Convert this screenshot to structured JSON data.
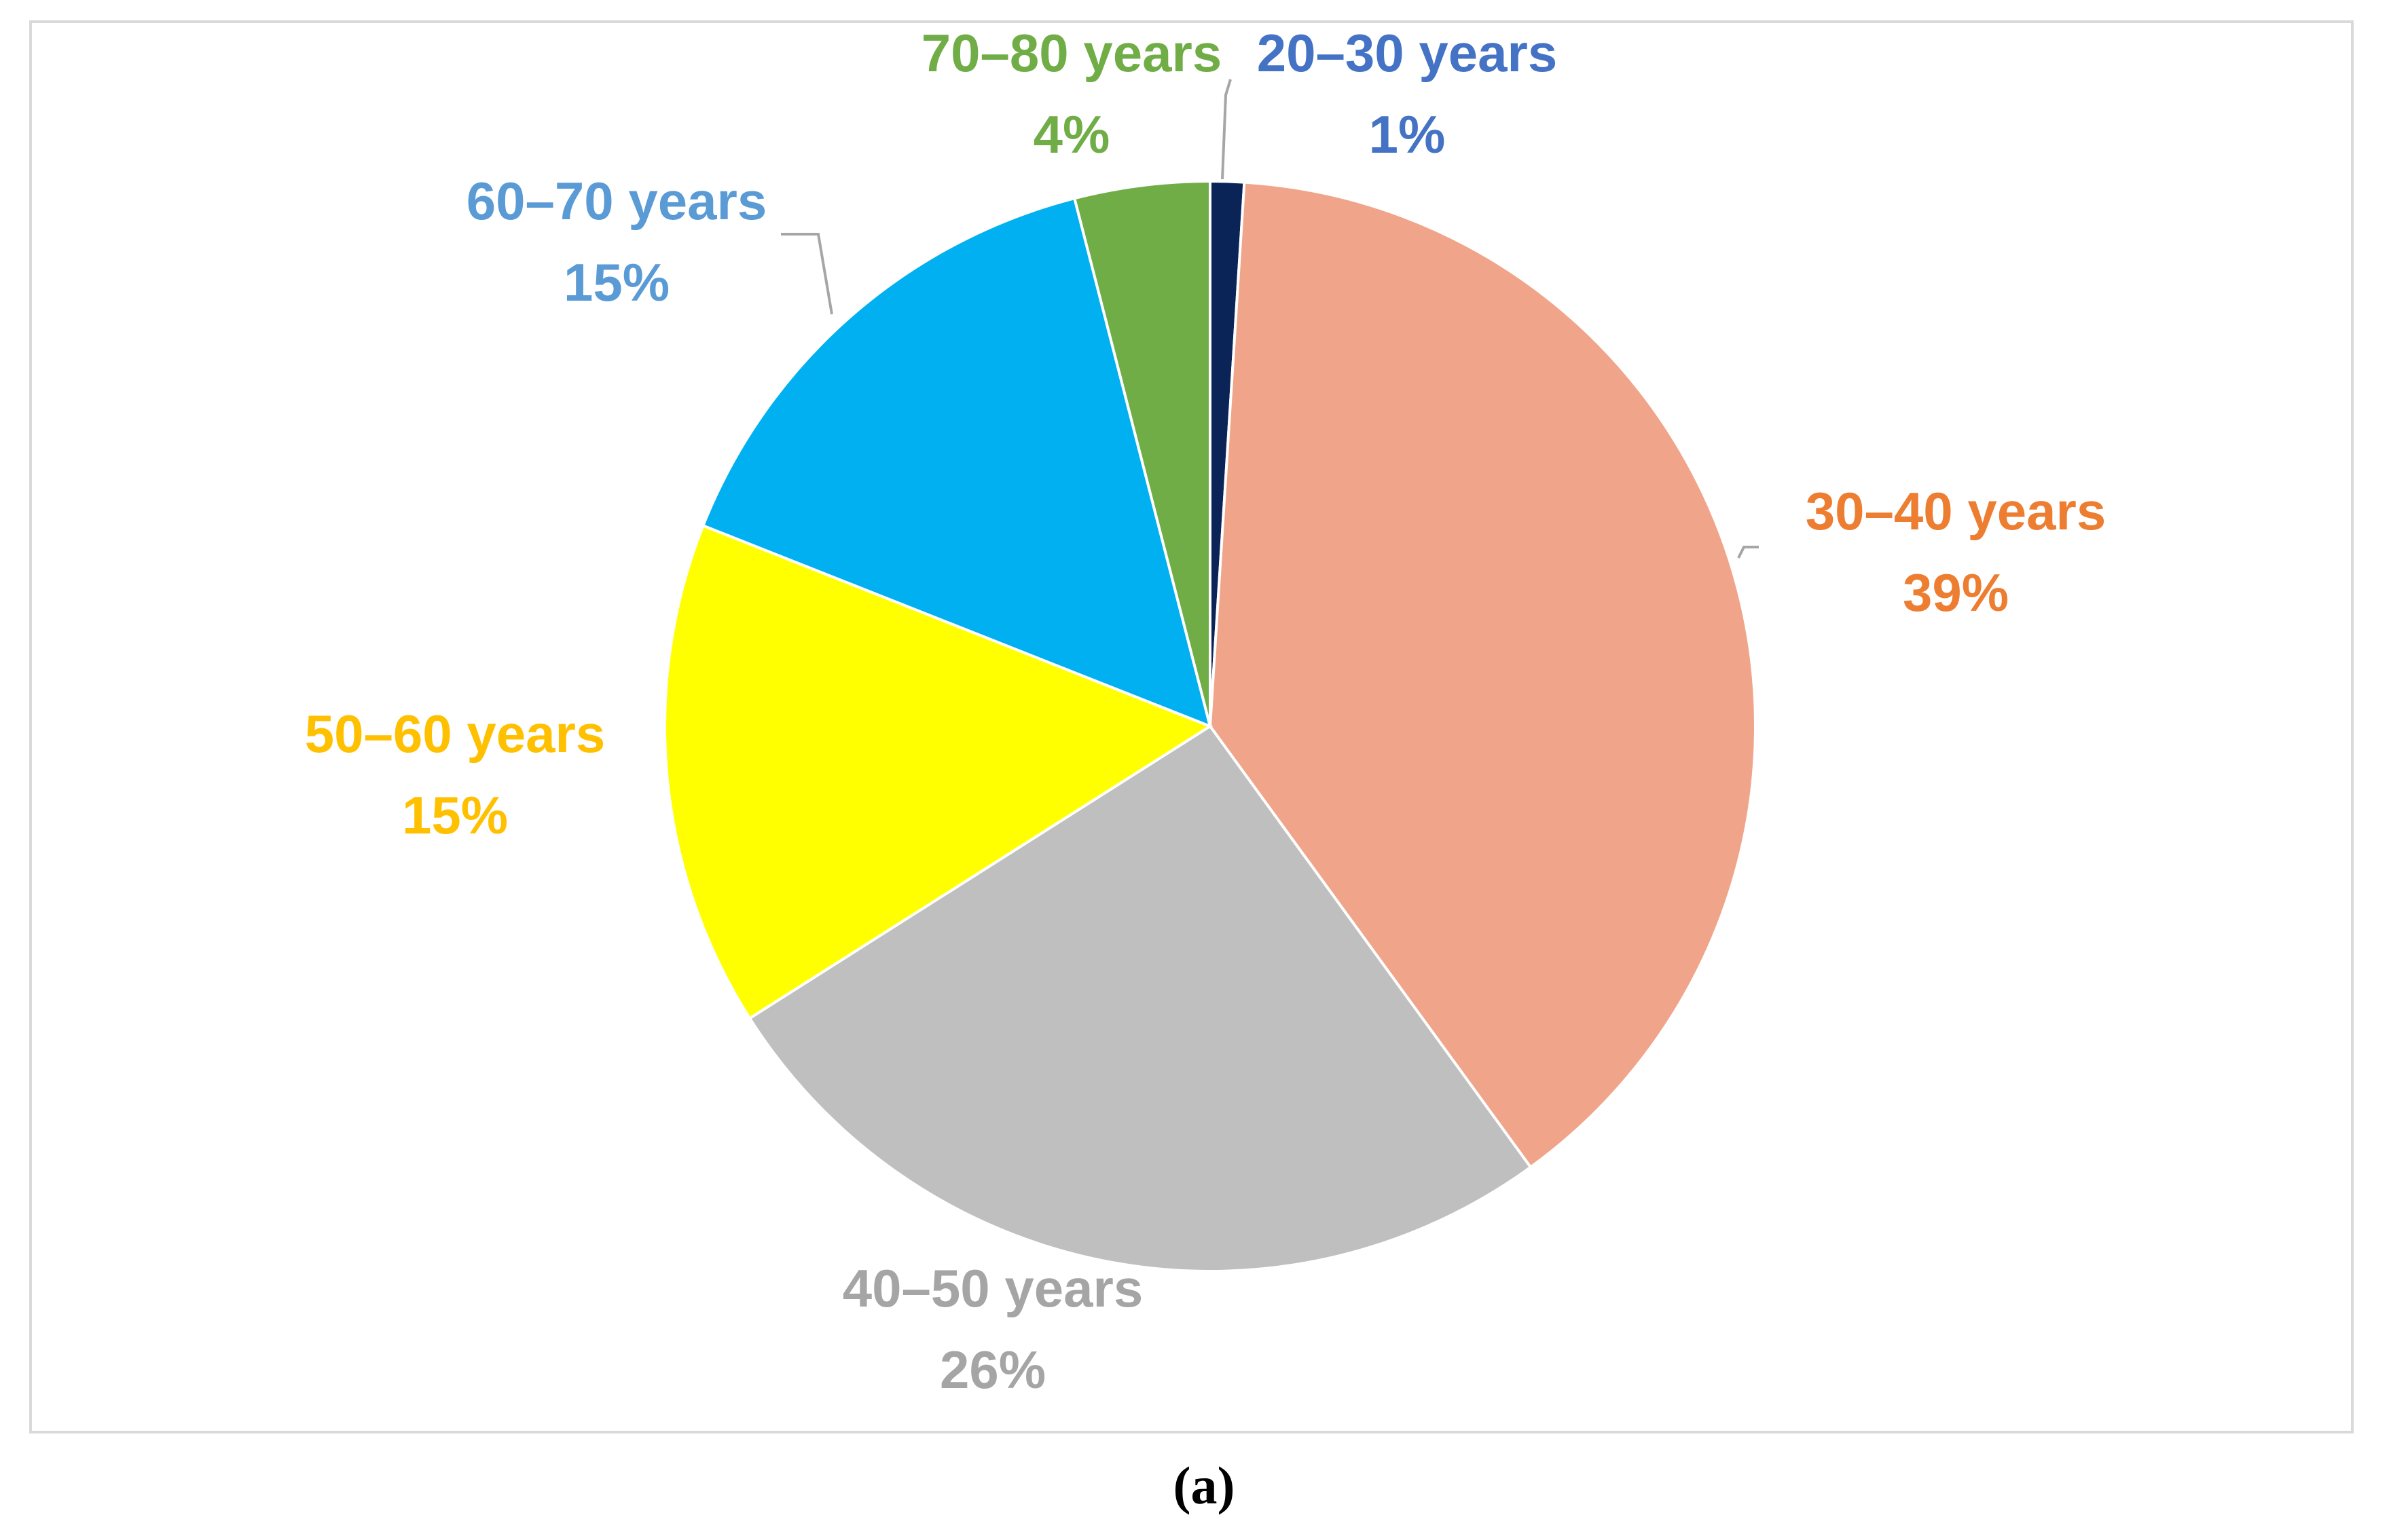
{
  "caption": "(a)",
  "chart_data": {
    "type": "pie",
    "title": "",
    "slices": [
      {
        "label": "20–30 years",
        "value": 1,
        "value_label": "1%",
        "color": "#0b2457",
        "label_color": "#4472c4"
      },
      {
        "label": "30–40 years",
        "value": 39,
        "value_label": "39%",
        "color": "#f0a58a",
        "label_color": "#ed7d31"
      },
      {
        "label": "40–50 years",
        "value": 26,
        "value_label": "26%",
        "color": "#bfbfbf",
        "label_color": "#a5a5a5"
      },
      {
        "label": "50–60 years",
        "value": 15,
        "value_label": "15%",
        "color": "#ffff00",
        "label_color": "#ffc000"
      },
      {
        "label": "60–70 years",
        "value": 15,
        "value_label": "15%",
        "color": "#00b0f0",
        "label_color": "#5b9bd5"
      },
      {
        "label": "70–80 years",
        "value": 4,
        "value_label": "4%",
        "color": "#70ad47",
        "label_color": "#70ad47"
      }
    ],
    "start_angle": "12 o'clock",
    "direction": "clockwise",
    "legend": "none",
    "leader_line_color": "#a6a6a6"
  }
}
